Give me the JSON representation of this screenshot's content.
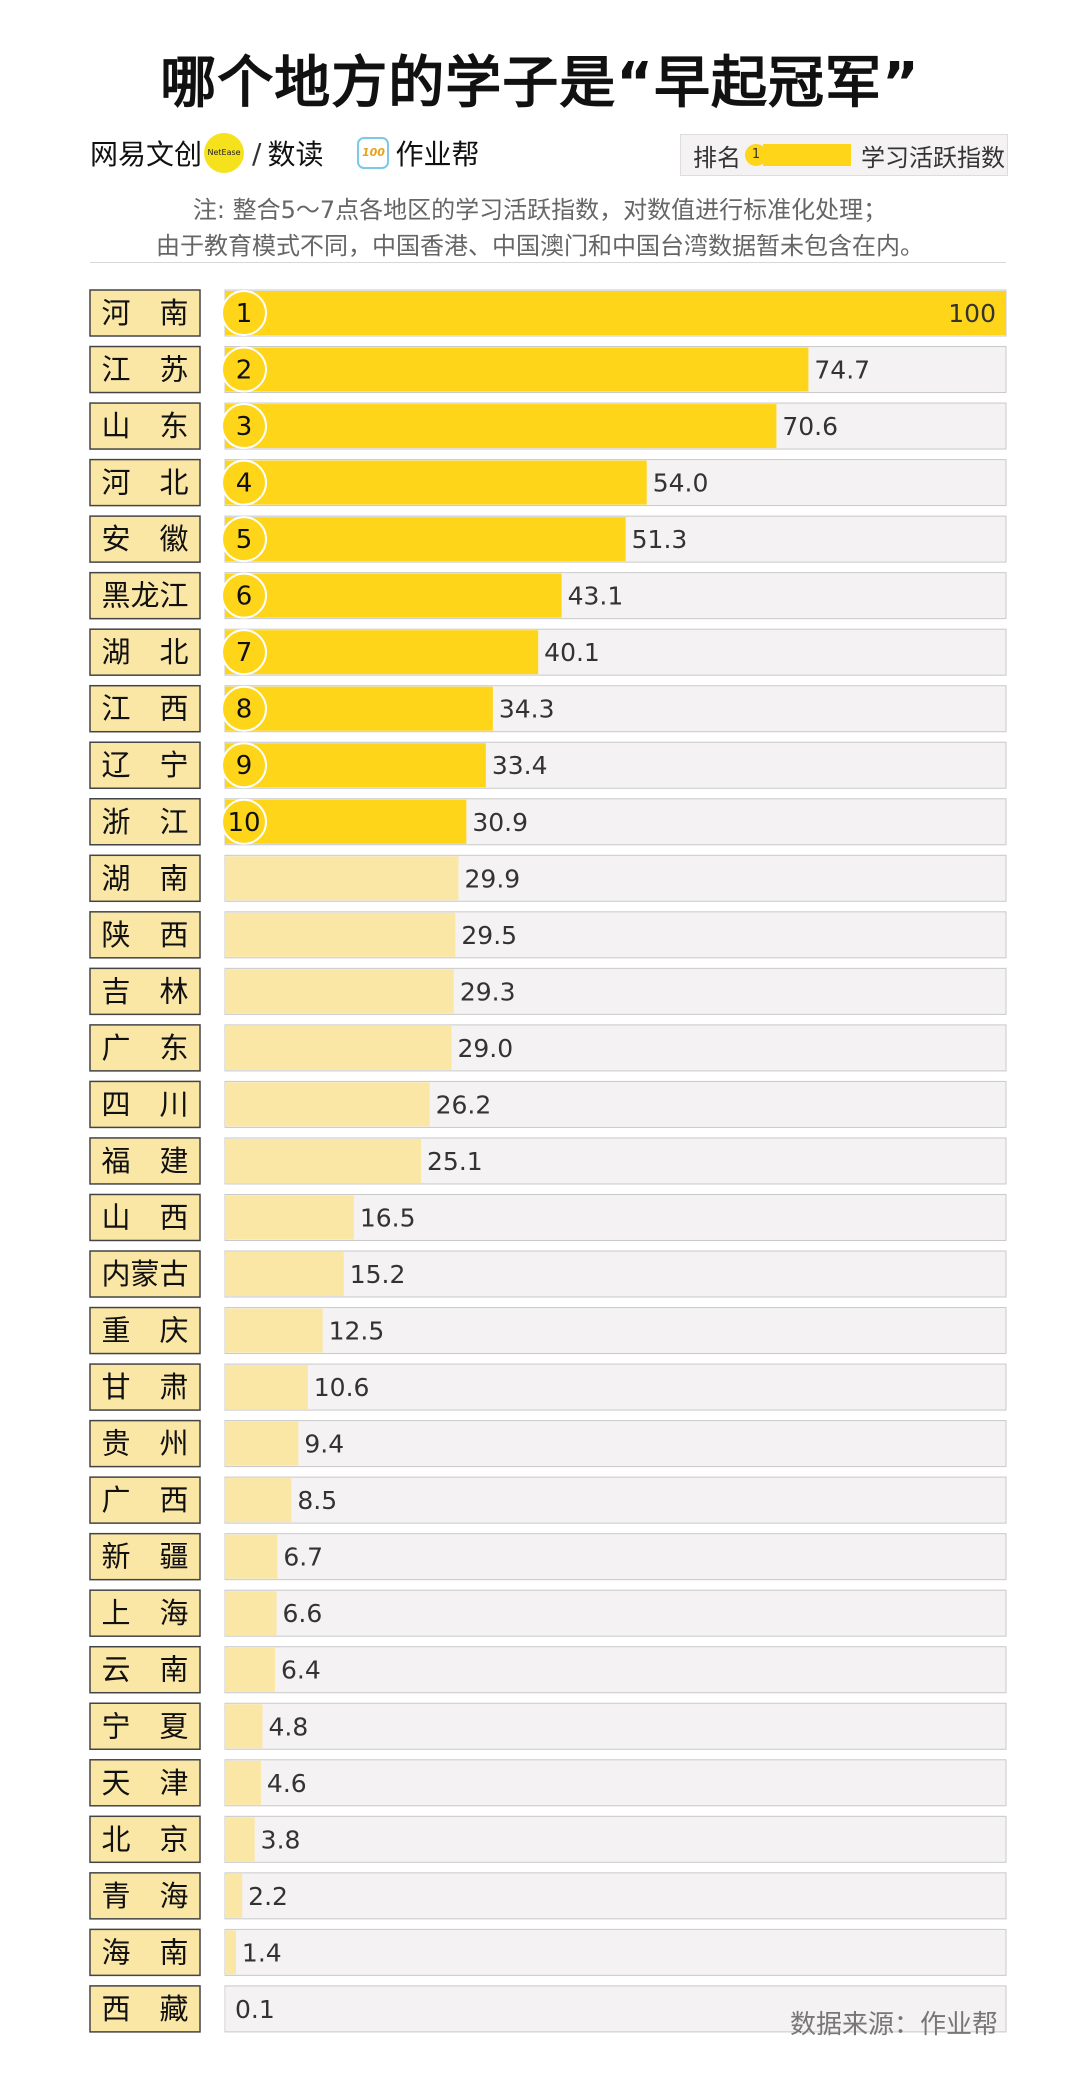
{
  "title": "哪个地方的学子是“早起冠军”",
  "brand": {
    "netease_text": "网易文创",
    "netease_dot_text": "NetEase",
    "slash": "/",
    "shudu_text": "数读",
    "homework_icon_text": "100",
    "homework_text": "作业帮"
  },
  "legend": {
    "rank_label": "排名",
    "rank_sample": "1",
    "index_label": "学习活跃指数"
  },
  "notes": [
    "注: 整合5～7点各地区的学习活跃指数，对数值进行标准化处理；",
    "由于教育模式不同，中国香港、中国澳门和中国台湾数据暂未包含在内。"
  ],
  "source": "数据来源：作业帮",
  "colors": {
    "top_bar": "#ffd51a",
    "other_bar": "#fbe7a5",
    "track": "#f4f2f2",
    "track_border": "#c9c9c9",
    "label_bg": "#fbe7a5",
    "label_border": "#444444"
  },
  "chart_data": {
    "type": "bar",
    "orientation": "horizontal",
    "title": "哪个地方的学子是“早起冠军”",
    "xlabel": "",
    "ylabel": "",
    "xlim": [
      0,
      100
    ],
    "grid": false,
    "highlighted_top": 10,
    "categories": [
      "河南",
      "江苏",
      "山东",
      "河北",
      "安徽",
      "黑龙江",
      "湖北",
      "江西",
      "辽宁",
      "浙江",
      "湖南",
      "陕西",
      "吉林",
      "广东",
      "四川",
      "福建",
      "山西",
      "内蒙古",
      "重庆",
      "甘肃",
      "贵州",
      "广西",
      "新疆",
      "上海",
      "云南",
      "宁夏",
      "天津",
      "北京",
      "青海",
      "海南",
      "西藏"
    ],
    "display_labels": [
      "河　南",
      "江　苏",
      "山　东",
      "河　北",
      "安　徽",
      "黑龙江",
      "湖　北",
      "江　西",
      "辽　宁",
      "浙　江",
      "湖　南",
      "陕　西",
      "吉　林",
      "广　东",
      "四　川",
      "福　建",
      "山　西",
      "内蒙古",
      "重　庆",
      "甘　肃",
      "贵　州",
      "广　西",
      "新　疆",
      "上　海",
      "云　南",
      "宁　夏",
      "天　津",
      "北　京",
      "青　海",
      "海　南",
      "西　藏"
    ],
    "values": [
      100,
      74.7,
      70.6,
      54.0,
      51.3,
      43.1,
      40.1,
      34.3,
      33.4,
      30.9,
      29.9,
      29.5,
      29.3,
      29.0,
      26.2,
      25.1,
      16.5,
      15.2,
      12.5,
      10.6,
      9.4,
      8.5,
      6.7,
      6.6,
      6.4,
      4.8,
      4.6,
      3.8,
      2.2,
      1.4,
      0.1
    ],
    "value_labels": [
      "100",
      "74.7",
      "70.6",
      "54.0",
      "51.3",
      "43.1",
      "40.1",
      "34.3",
      "33.4",
      "30.9",
      "29.9",
      "29.5",
      "29.3",
      "29.0",
      "26.2",
      "25.1",
      "16.5",
      "15.2",
      "12.5",
      "10.6",
      "9.4",
      "8.5",
      "6.7",
      "6.6",
      "6.4",
      "4.8",
      "4.6",
      "3.8",
      "2.2",
      "1.4",
      "0.1"
    ],
    "ranks": [
      "1",
      "2",
      "3",
      "4",
      "5",
      "6",
      "7",
      "8",
      "9",
      "10"
    ]
  }
}
